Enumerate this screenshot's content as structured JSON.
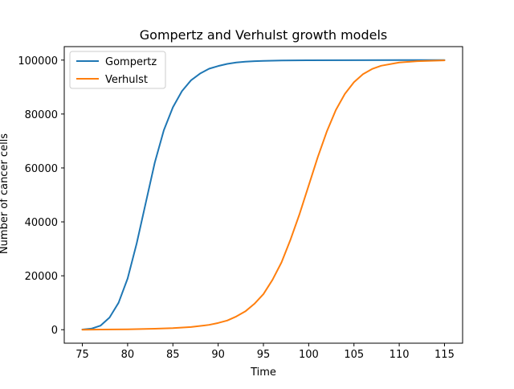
{
  "chart_data": {
    "type": "line",
    "title": "Gompertz and Verhulst growth models",
    "xlabel": "Time",
    "ylabel": "Number of cancer cells",
    "xlim": [
      73.0,
      117.0
    ],
    "ylim": [
      -5000,
      105000
    ],
    "xticks": [
      75,
      80,
      85,
      90,
      95,
      100,
      105,
      110,
      115
    ],
    "yticks": [
      0,
      20000,
      40000,
      60000,
      80000,
      100000
    ],
    "xtick_labels": [
      "75",
      "80",
      "85",
      "90",
      "95",
      "100",
      "105",
      "110",
      "115"
    ],
    "ytick_labels": [
      "0",
      "20000",
      "40000",
      "60000",
      "80000",
      "100000"
    ],
    "grid": false,
    "legend_position": "upper-left",
    "series": [
      {
        "name": "Gompertz",
        "color": "#1f77b4",
        "x": [
          75,
          76,
          77,
          78,
          79,
          80,
          81,
          82,
          83,
          84,
          85,
          86,
          87,
          88,
          89,
          90,
          91,
          92,
          93,
          94,
          95,
          97,
          100,
          105,
          110,
          115
        ],
        "y": [
          80,
          400,
          1500,
          4500,
          10000,
          19000,
          32000,
          47000,
          62000,
          74000,
          82500,
          88500,
          92500,
          95000,
          96800,
          97800,
          98600,
          99100,
          99400,
          99600,
          99700,
          99850,
          99930,
          99980,
          100000,
          100000
        ]
      },
      {
        "name": "Verhulst",
        "color": "#ff7f0e",
        "x": [
          75,
          77,
          80,
          83,
          85,
          87,
          89,
          90,
          91,
          92,
          93,
          94,
          95,
          96,
          97,
          98,
          99,
          100,
          101,
          102,
          103,
          104,
          105,
          106,
          107,
          108,
          110,
          112,
          115
        ],
        "y": [
          0,
          50,
          150,
          350,
          600,
          1000,
          1800,
          2500,
          3400,
          4900,
          6800,
          9600,
          13200,
          18500,
          25000,
          33500,
          43000,
          53500,
          64000,
          73500,
          81500,
          87500,
          91800,
          94800,
          96700,
          97900,
          99100,
          99600,
          99900
        ]
      }
    ]
  }
}
